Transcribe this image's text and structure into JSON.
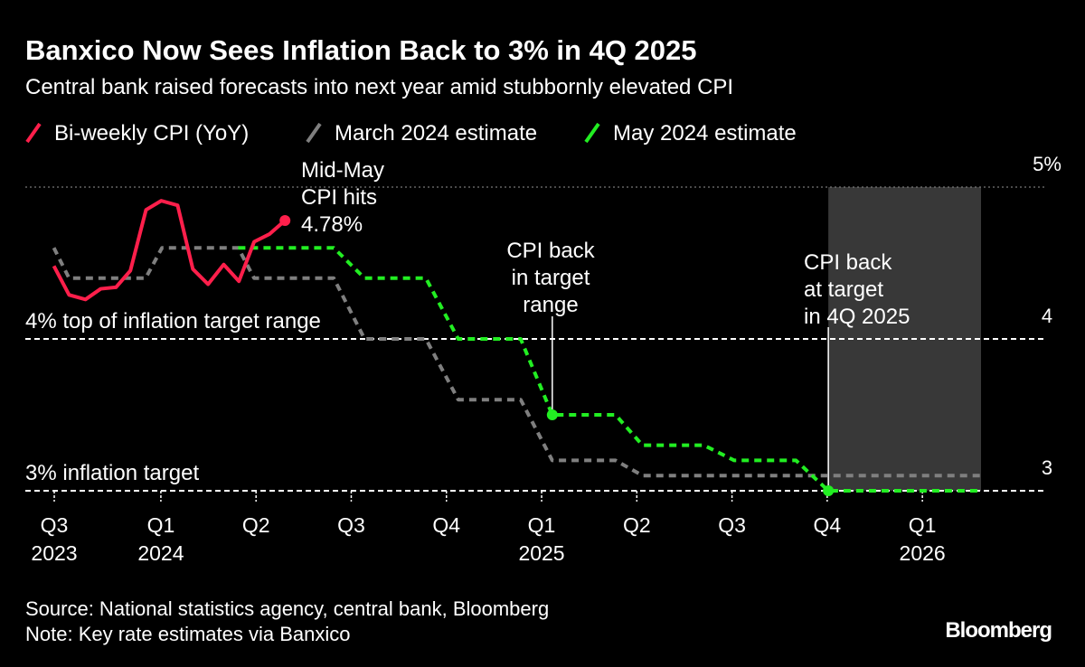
{
  "chart_data": {
    "type": "line",
    "title": "Banxico Now Sees Inflation Back to 3% in 4Q 2025",
    "subtitle": "Central bank raised forecasts into next year amid stubbornly elevated CPI",
    "source": "Source: National statistics agency, central bank, Bloomberg",
    "note": "Note: Key rate estimates via Banxico",
    "brand": "Bloomberg",
    "ylim": [
      3,
      5
    ],
    "yticks": [
      3,
      4,
      {
        "value": 5,
        "label": "5%"
      }
    ],
    "xlim": [
      2023.644,
      2026.325
    ],
    "xticks": [
      {
        "value": 2023.72,
        "label": "Q3",
        "year": "2023"
      },
      {
        "value": 2024.0,
        "label": "Q1",
        "year": "2024"
      },
      {
        "value": 2024.25,
        "label": "Q2"
      },
      {
        "value": 2024.5,
        "label": "Q3"
      },
      {
        "value": 2024.75,
        "label": "Q4"
      },
      {
        "value": 2025.0,
        "label": "Q1",
        "year": "2025"
      },
      {
        "value": 2025.25,
        "label": "Q2"
      },
      {
        "value": 2025.5,
        "label": "Q3"
      },
      {
        "value": 2025.75,
        "label": "Q4"
      },
      {
        "value": 2026.0,
        "label": "Q1",
        "year": "2026"
      }
    ],
    "reference_lines": [
      {
        "value": 4,
        "label": "4% top of inflation target range"
      },
      {
        "value": 3,
        "label": "3% inflation target"
      }
    ],
    "shaded_region": [
      2025.753,
      2026.154
    ],
    "series": [
      {
        "name": "Bi-weekly CPI (YoY)",
        "color": "#ff1f4b",
        "dashed": false,
        "marker_indices": [
          15
        ],
        "x": [
          2023.719,
          2023.759,
          2023.802,
          2023.842,
          2023.882,
          2023.92,
          2023.961,
          2024.001,
          2024.044,
          2024.084,
          2024.124,
          2024.165,
          2024.205,
          2024.245,
          2024.285,
          2024.326
        ],
        "values": [
          4.48,
          4.29,
          4.26,
          4.33,
          4.34,
          4.45,
          4.85,
          4.91,
          4.88,
          4.46,
          4.36,
          4.49,
          4.38,
          4.64,
          4.69,
          4.78
        ]
      },
      {
        "name": "March 2024 estimate",
        "color": "#7f7f7f",
        "dashed": true,
        "marker_indices": [],
        "x": [
          2023.719,
          2023.759,
          2023.96,
          2024.003,
          2024.203,
          2024.245,
          2024.454,
          2024.535,
          2024.696,
          2024.781,
          2024.945,
          2025.028,
          2025.194,
          2025.265,
          2026.154
        ],
        "values": [
          4.6,
          4.4,
          4.4,
          4.6,
          4.6,
          4.4,
          4.4,
          4.0,
          4.0,
          3.6,
          3.6,
          3.2,
          3.2,
          3.1,
          3.1
        ]
      },
      {
        "name": "May 2024 estimate",
        "color": "#22ee22",
        "dashed": true,
        "marker_indices": [
          6,
          12
        ],
        "x": [
          2024.203,
          2024.454,
          2024.535,
          2024.696,
          2024.781,
          2024.945,
          2025.028,
          2025.194,
          2025.265,
          2025.426,
          2025.506,
          2025.668,
          2025.753,
          2026.154
        ],
        "values": [
          4.6,
          4.6,
          4.4,
          4.4,
          4.0,
          4.0,
          3.5,
          3.5,
          3.3,
          3.3,
          3.2,
          3.2,
          3.0,
          3.0
        ]
      }
    ],
    "annotations": [
      {
        "lines": [
          "Mid-May",
          "CPI hits",
          "4.78%"
        ]
      },
      {
        "lines": [
          "CPI back",
          "in target",
          "range"
        ]
      },
      {
        "lines": [
          "CPI back",
          "at target",
          "in 4Q 2025"
        ]
      }
    ]
  }
}
